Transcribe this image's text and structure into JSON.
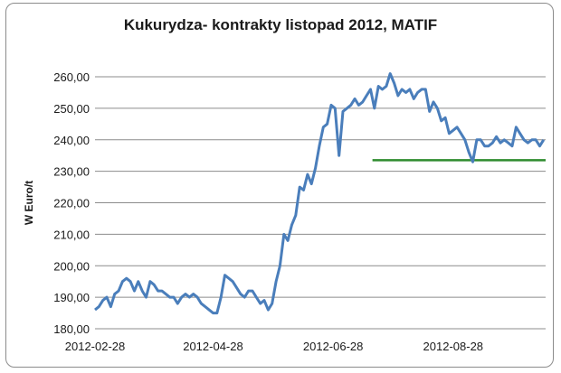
{
  "chart_data": {
    "type": "line",
    "title": "Kukurydza- kontrakty listopad 2012, MATIF",
    "xlabel": "",
    "ylabel": "W Euro/t",
    "ylim": [
      180,
      260
    ],
    "yticks": [
      180,
      190,
      200,
      210,
      220,
      230,
      240,
      250,
      260
    ],
    "ytick_labels": [
      "180,00",
      "190,00",
      "200,00",
      "210,00",
      "220,00",
      "230,00",
      "240,00",
      "250,00",
      "260,00"
    ],
    "xlim": [
      "2012-02-28",
      "2012-10-14"
    ],
    "xtick_labels": [
      "2012-02-28",
      "2012-04-28",
      "2012-06-28",
      "2012-08-28"
    ],
    "grid": true,
    "line_color": "#4a7ebb",
    "reference_line": {
      "y": 233.5,
      "x_start": "2012-07-18",
      "x_end": "2012-10-14",
      "color": "#2e8b2e"
    },
    "series": [
      {
        "x": [
          "2012-02-28",
          "2012-03-01",
          "2012-03-03",
          "2012-03-05",
          "2012-03-07",
          "2012-03-09",
          "2012-03-11",
          "2012-03-13",
          "2012-03-15",
          "2012-03-17",
          "2012-03-19",
          "2012-03-21",
          "2012-03-23",
          "2012-03-25",
          "2012-03-27",
          "2012-03-29",
          "2012-03-31",
          "2012-04-02",
          "2012-04-04",
          "2012-04-06",
          "2012-04-08",
          "2012-04-10",
          "2012-04-12",
          "2012-04-14",
          "2012-04-16",
          "2012-04-18",
          "2012-04-20",
          "2012-04-22",
          "2012-04-24",
          "2012-04-26",
          "2012-04-28",
          "2012-04-30",
          "2012-05-02",
          "2012-05-04",
          "2012-05-06",
          "2012-05-08",
          "2012-05-10",
          "2012-05-12",
          "2012-05-14",
          "2012-05-16",
          "2012-05-18",
          "2012-05-20",
          "2012-05-22",
          "2012-05-24",
          "2012-05-26",
          "2012-05-28",
          "2012-05-30",
          "2012-06-01",
          "2012-06-03",
          "2012-06-05",
          "2012-06-07",
          "2012-06-09",
          "2012-06-11",
          "2012-06-13",
          "2012-06-15",
          "2012-06-17",
          "2012-06-19",
          "2012-06-21",
          "2012-06-23",
          "2012-06-25",
          "2012-06-27",
          "2012-06-29",
          "2012-07-01",
          "2012-07-03",
          "2012-07-05",
          "2012-07-07",
          "2012-07-09",
          "2012-07-11",
          "2012-07-13",
          "2012-07-15",
          "2012-07-17",
          "2012-07-19",
          "2012-07-21",
          "2012-07-23",
          "2012-07-25",
          "2012-07-27",
          "2012-07-29",
          "2012-07-31",
          "2012-08-02",
          "2012-08-04",
          "2012-08-06",
          "2012-08-08",
          "2012-08-10",
          "2012-08-12",
          "2012-08-14",
          "2012-08-16",
          "2012-08-18",
          "2012-08-20",
          "2012-08-22",
          "2012-08-24",
          "2012-08-26",
          "2012-08-28",
          "2012-08-30",
          "2012-09-01",
          "2012-09-03",
          "2012-09-05",
          "2012-09-07",
          "2012-09-09",
          "2012-09-11",
          "2012-09-13",
          "2012-09-15",
          "2012-09-17",
          "2012-09-19",
          "2012-09-21",
          "2012-09-23",
          "2012-09-25",
          "2012-09-27",
          "2012-09-29",
          "2012-10-01",
          "2012-10-03",
          "2012-10-05",
          "2012-10-07",
          "2012-10-09",
          "2012-10-11",
          "2012-10-13"
        ],
        "values": [
          186,
          187,
          189,
          190,
          187,
          191,
          192,
          195,
          196,
          195,
          192,
          195,
          192,
          190,
          195,
          194,
          192,
          192,
          191,
          190,
          190,
          188,
          190,
          191,
          190,
          191,
          190,
          188,
          187,
          186,
          185,
          185,
          190,
          197,
          196,
          195,
          193,
          191,
          190,
          192,
          192,
          190,
          188,
          189,
          186,
          188,
          195,
          200,
          210,
          208,
          213,
          216,
          225,
          224,
          229,
          226,
          231,
          238,
          244,
          245,
          251,
          250,
          235,
          249,
          250,
          251,
          253,
          251,
          252,
          254,
          256,
          250,
          257,
          256,
          257,
          261,
          258,
          254,
          256,
          255,
          256,
          253,
          255,
          256,
          256,
          249,
          252,
          250,
          246,
          247,
          242,
          243,
          244,
          242,
          240,
          236,
          233,
          240,
          240,
          238,
          238,
          239,
          241,
          239,
          240,
          239,
          238,
          244,
          242,
          240,
          239,
          240,
          240,
          238,
          240
        ]
      }
    ]
  }
}
